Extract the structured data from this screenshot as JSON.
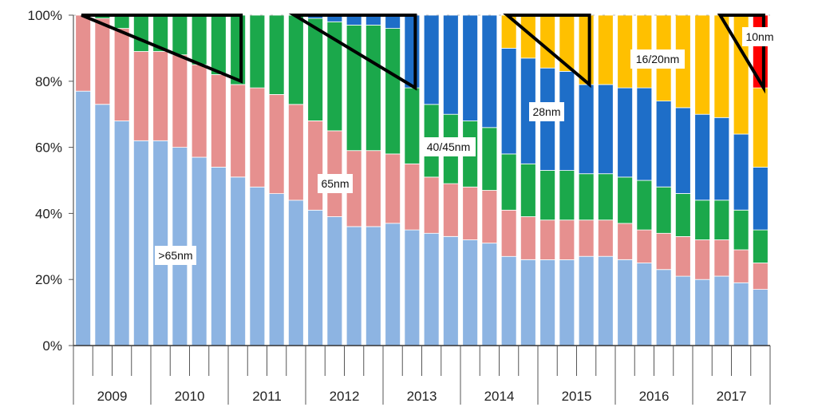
{
  "chart_data": {
    "type": "bar",
    "stacked": true,
    "percent": true,
    "title": "",
    "xlabel": "",
    "ylabel": "",
    "ylim": [
      0,
      100
    ],
    "yticks": [
      "0%",
      "20%",
      "40%",
      "60%",
      "80%",
      "100%"
    ],
    "years": [
      "2009",
      "2010",
      "2011",
      "2012",
      "2013",
      "2014",
      "2015",
      "2016",
      "2017"
    ],
    "quarters_per_year": 4,
    "series": [
      {
        "name": ">65nm",
        "color": "#8DB4E2",
        "values": [
          77,
          73,
          68,
          62,
          62,
          60,
          57,
          54,
          51,
          48,
          46,
          44,
          41,
          39,
          36,
          36,
          37,
          35,
          34,
          33,
          32,
          31,
          27,
          26,
          26,
          26,
          27,
          27,
          26,
          25,
          23,
          21,
          20,
          21,
          19,
          17
        ]
      },
      {
        "name": "65nm",
        "color": "#E6908F",
        "values": [
          23,
          26,
          28,
          27,
          27,
          28,
          28,
          28,
          28,
          30,
          30,
          29,
          27,
          26,
          23,
          23,
          21,
          20,
          17,
          16,
          16,
          16,
          14,
          13,
          12,
          12,
          11,
          11,
          11,
          10,
          11,
          12,
          12,
          11,
          10,
          8
        ]
      },
      {
        "name": "40/45nm",
        "color": "#1BA84B",
        "values": [
          0,
          1,
          4,
          11,
          11,
          12,
          15,
          18,
          21,
          22,
          24,
          27,
          31,
          33,
          38,
          38,
          38,
          23,
          22,
          21,
          20,
          19,
          17,
          16,
          15,
          15,
          14,
          14,
          14,
          15,
          14,
          13,
          12,
          12,
          12,
          10
        ]
      },
      {
        "name": "28nm",
        "color": "#1E6EC8",
        "values": [
          0,
          0,
          0,
          0,
          0,
          0,
          0,
          0,
          0,
          0,
          0,
          0,
          1,
          2,
          3,
          3,
          4,
          22,
          27,
          30,
          32,
          34,
          32,
          32,
          31,
          30,
          27,
          27,
          27,
          28,
          26,
          26,
          26,
          25,
          23,
          19
        ]
      },
      {
        "name": "16/20nm",
        "color": "#FFC000",
        "values": [
          0,
          0,
          0,
          0,
          0,
          0,
          0,
          0,
          0,
          0,
          0,
          0,
          0,
          0,
          0,
          0,
          0,
          0,
          0,
          0,
          0,
          0,
          10,
          13,
          16,
          17,
          21,
          21,
          22,
          22,
          26,
          28,
          30,
          31,
          36,
          24
        ]
      },
      {
        "name": "10nm",
        "color": "#FF0000",
        "values": [
          0,
          0,
          0,
          0,
          0,
          0,
          0,
          0,
          0,
          0,
          0,
          0,
          0,
          0,
          0,
          0,
          0,
          0,
          0,
          0,
          0,
          0,
          0,
          0,
          0,
          0,
          0,
          0,
          0,
          0,
          0,
          0,
          0,
          0,
          0,
          22
        ]
      }
    ],
    "annotations": [
      ">65nm",
      "65nm",
      "40/45nm",
      "28nm",
      "16/20nm",
      "10nm"
    ]
  }
}
